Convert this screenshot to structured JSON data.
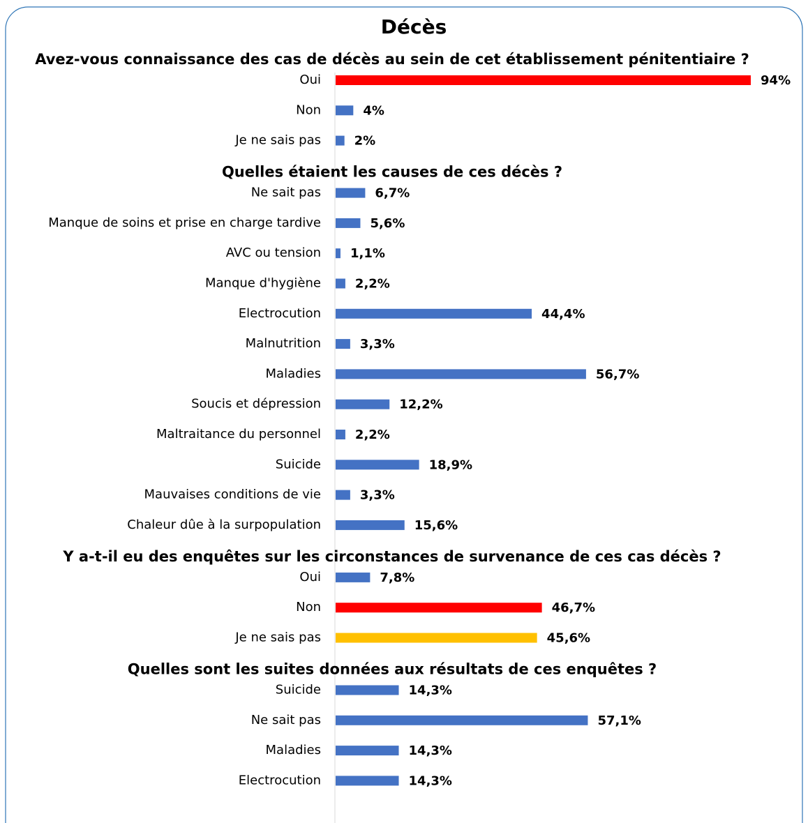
{
  "title": "Décès",
  "chart_data": [
    {
      "type": "bar",
      "title": "Avez-vous connaissance des cas de décès au sein de cet établissement pénitentiaire ?",
      "categories": [
        "Oui",
        "Non",
        "Je ne sais pas"
      ],
      "values": [
        94,
        4,
        2
      ],
      "value_labels": [
        "94%",
        "4%",
        "2%"
      ],
      "colors": [
        "#ff0000",
        "#4472c4",
        "#4472c4"
      ]
    },
    {
      "type": "bar",
      "title": "Quelles étaient les causes de ces décès ?",
      "categories": [
        "Ne sait pas",
        "Manque de soins et prise en charge tardive",
        "AVC ou tension",
        "Manque d'hygiène",
        "Electrocution",
        "Malnutrition",
        "Maladies",
        "Soucis et dépression",
        "Maltraitance du personnel",
        "Suicide",
        "Mauvaises conditions de vie",
        "Chaleur dûe à la surpopulation"
      ],
      "values": [
        6.7,
        5.6,
        1.1,
        2.2,
        44.4,
        3.3,
        56.7,
        12.2,
        2.2,
        18.9,
        3.3,
        15.6
      ],
      "value_labels": [
        "6,7%",
        "5,6%",
        "1,1%",
        "2,2%",
        "44,4%",
        "3,3%",
        "56,7%",
        "12,2%",
        "2,2%",
        "18,9%",
        "3,3%",
        "15,6%"
      ],
      "colors": [
        "#4472c4",
        "#4472c4",
        "#4472c4",
        "#4472c4",
        "#4472c4",
        "#4472c4",
        "#4472c4",
        "#4472c4",
        "#4472c4",
        "#4472c4",
        "#4472c4",
        "#4472c4"
      ]
    },
    {
      "type": "bar",
      "title": "Y a-t-il eu  des enquêtes sur les circonstances de survenance de ces cas décès ?",
      "categories": [
        "Oui",
        "Non",
        "Je ne sais pas"
      ],
      "values": [
        7.8,
        46.7,
        45.6
      ],
      "value_labels": [
        "7,8%",
        "46,7%",
        "45,6%"
      ],
      "colors": [
        "#4472c4",
        "#ff0000",
        "#ffc000"
      ]
    },
    {
      "type": "bar",
      "title": "Quelles sont les suites données aux résultats de ces enquêtes ?",
      "categories": [
        "Suicide",
        "Ne sait pas",
        "Maladies",
        "Electrocution"
      ],
      "values": [
        14.3,
        57.1,
        14.3,
        14.3
      ],
      "value_labels": [
        "14,3%",
        "57,1%",
        "14,3%",
        "14,3%"
      ],
      "colors": [
        "#4472c4",
        "#4472c4",
        "#4472c4",
        "#4472c4"
      ]
    }
  ]
}
